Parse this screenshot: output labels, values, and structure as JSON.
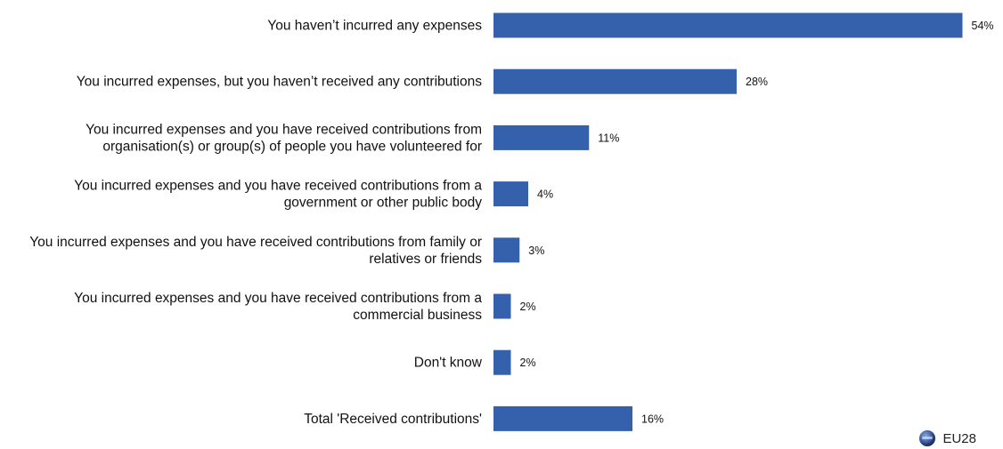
{
  "chart_data": {
    "type": "bar",
    "orientation": "horizontal",
    "categories": [
      "You haven’t incurred any expenses",
      "You incurred expenses, but you haven’t received any contributions",
      "You incurred expenses and you have received contributions from organisation(s) or group(s) of people you have volunteered for",
      "You incurred expenses and you have received contributions from a government or other public body",
      "You incurred expenses and you have received contributions from family or relatives or friends",
      "You incurred expenses and you have received contributions from a commercial business",
      "Don't know",
      "Total 'Received contributions'"
    ],
    "label_lines": [
      [
        "You haven’t incurred any expenses"
      ],
      [
        "You incurred expenses, but you haven’t received any contributions"
      ],
      [
        "You incurred expenses and you have received contributions from",
        "organisation(s) or group(s) of people you have volunteered for"
      ],
      [
        "You incurred expenses and you have received contributions from a",
        "government or other public body"
      ],
      [
        "You incurred expenses and you have received contributions from family or",
        "relatives or friends"
      ],
      [
        "You incurred expenses and you have received contributions from a",
        "commercial business"
      ],
      [
        "Don't know"
      ],
      [
        "Total 'Received contributions'"
      ]
    ],
    "series": [
      {
        "name": "EU28",
        "values": [
          54,
          28,
          11,
          4,
          3,
          2,
          2,
          16
        ]
      }
    ],
    "value_suffix": "%",
    "xlim": [
      0,
      60
    ],
    "grid": false,
    "legend_position": "bottom-right",
    "bar_color": "#3560ab"
  },
  "legend": {
    "label": "EU28"
  }
}
